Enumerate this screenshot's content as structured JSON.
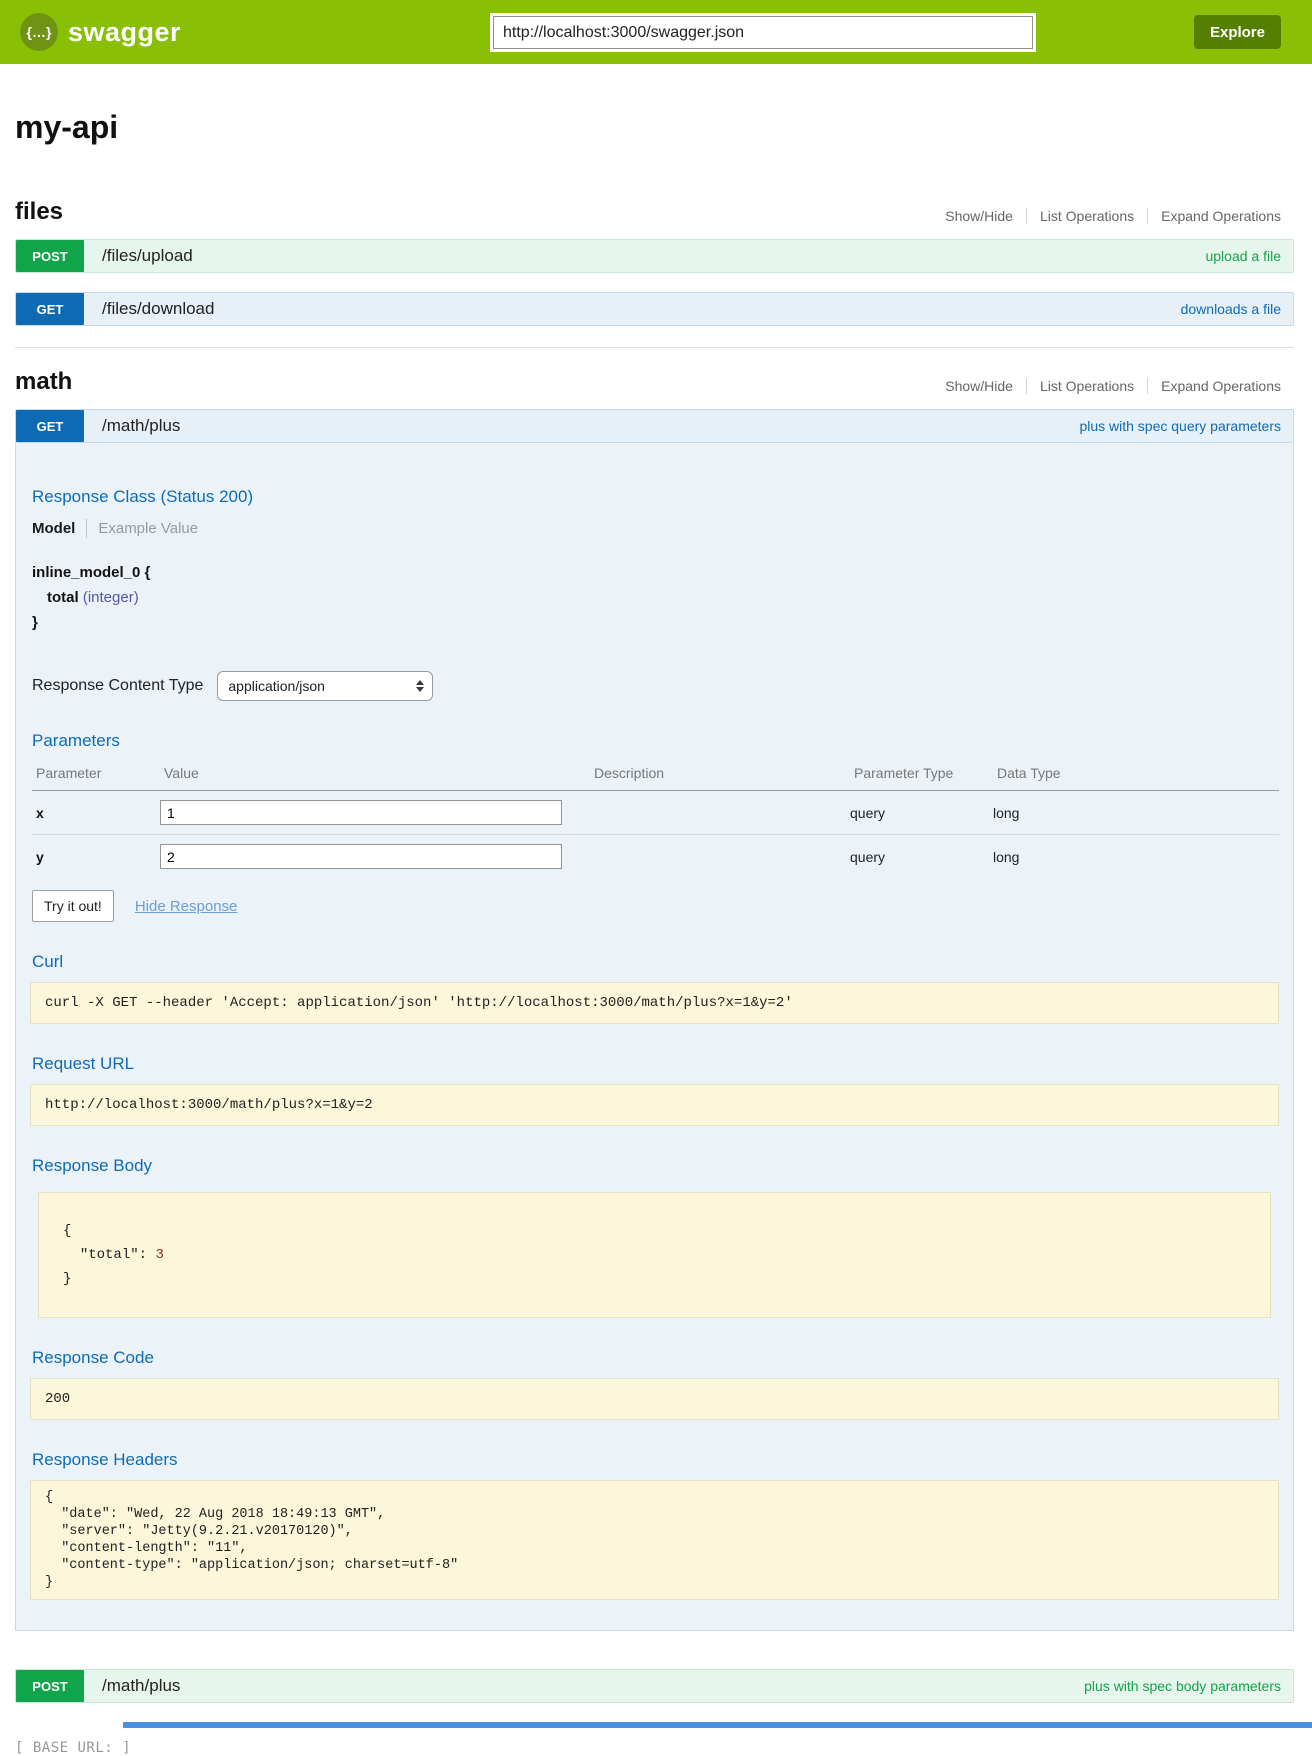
{
  "colors": {
    "header_green": "#89bf04",
    "explore_green": "#547f00",
    "post_green": "#10a54a",
    "get_blue": "#0f6ab4",
    "panel_blue_bg": "#ebf3f9",
    "code_cream_bg": "#fcf6db",
    "footer_accent_blue": "#4a90e2"
  },
  "header": {
    "logo_icon": "{…}",
    "brand": "swagger",
    "url_value": "http://localhost:3000/swagger.json",
    "explore_label": "Explore"
  },
  "api_title": "my-api",
  "resources": [
    {
      "name": "files",
      "options": [
        "Show/Hide",
        "List Operations",
        "Expand Operations"
      ],
      "endpoints": [
        {
          "method": "POST",
          "path": "/files/upload",
          "summary": "upload a file"
        },
        {
          "method": "GET",
          "path": "/files/download",
          "summary": "downloads a file"
        }
      ]
    },
    {
      "name": "math",
      "options": [
        "Show/Hide",
        "List Operations",
        "Expand Operations"
      ],
      "endpoints": [
        {
          "method": "GET",
          "path": "/math/plus",
          "summary": "plus with spec query parameters"
        },
        {
          "method": "POST",
          "path": "/math/plus",
          "summary": "plus with spec body parameters"
        }
      ]
    }
  ],
  "operation": {
    "response_class": {
      "heading": "Response Class (Status 200)",
      "tabs": {
        "model": "Model",
        "example": "Example Value"
      },
      "model_name": "inline_model_0",
      "open_brace": "{",
      "property_name": "total",
      "property_type": "(integer)",
      "close_brace": "}"
    },
    "response_content_type": {
      "label": "Response Content Type",
      "value": "application/json"
    },
    "parameters": {
      "heading": "Parameters",
      "columns": [
        "Parameter",
        "Value",
        "Description",
        "Parameter Type",
        "Data Type"
      ],
      "rows": [
        {
          "name": "x",
          "value": "1",
          "description": "",
          "param_type": "query",
          "data_type": "long"
        },
        {
          "name": "y",
          "value": "2",
          "description": "",
          "param_type": "query",
          "data_type": "long"
        }
      ]
    },
    "try_it_out": "Try it out!",
    "hide_response": "Hide Response",
    "curl": {
      "heading": "Curl",
      "command": "curl -X GET --header 'Accept: application/json' 'http://localhost:3000/math/plus?x=1&y=2'"
    },
    "request_url": {
      "heading": "Request URL",
      "value": "http://localhost:3000/math/plus?x=1&y=2"
    },
    "response_body": {
      "heading": "Response Body",
      "open": "{",
      "key": "\"total\"",
      "colon": ":",
      "value": "3",
      "close": "}"
    },
    "response_code": {
      "heading": "Response Code",
      "value": "200"
    },
    "response_headers": {
      "heading": "Response Headers",
      "json": "{\n  \"date\": \"Wed, 22 Aug 2018 18:49:13 GMT\",\n  \"server\": \"Jetty(9.2.21.v20170120)\",\n  \"content-length\": \"11\",\n  \"content-type\": \"application/json; charset=utf-8\"\n}"
    }
  },
  "footer": {
    "base_url_label": "[ BASE URL: ]"
  }
}
